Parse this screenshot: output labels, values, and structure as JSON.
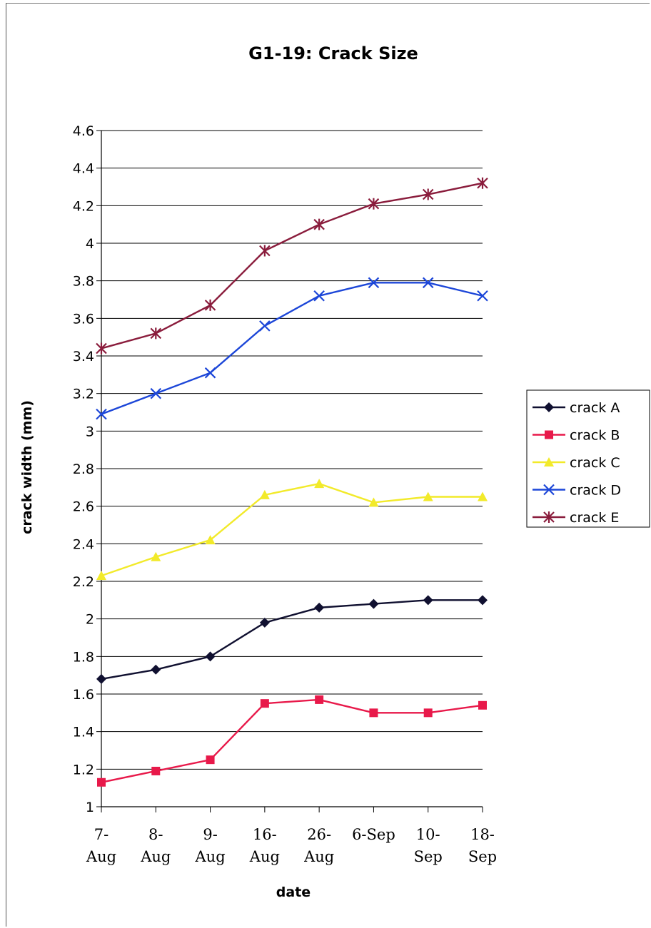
{
  "chart_data": {
    "type": "line",
    "title": "G1-19: Crack Size",
    "xlabel": "date",
    "ylabel": "crack width (mm)",
    "ylim": [
      1,
      4.6
    ],
    "yticks": [
      "1",
      "1.2",
      "1.4",
      "1.6",
      "1.8",
      "2",
      "2.2",
      "2.4",
      "2.6",
      "2.8",
      "3",
      "3.2",
      "3.4",
      "3.6",
      "3.8",
      "4",
      "4.2",
      "4.4",
      "4.6"
    ],
    "categories": [
      [
        "7-",
        "Aug"
      ],
      [
        "8-",
        "Aug"
      ],
      [
        "9-",
        "Aug"
      ],
      [
        "16-",
        "Aug"
      ],
      [
        "26-",
        "Aug"
      ],
      [
        "6-Sep"
      ],
      [
        "10-",
        "Sep"
      ],
      [
        "18-",
        "Sep"
      ]
    ],
    "grid": true,
    "legend_position": "right",
    "series": [
      {
        "name": "crack A",
        "color": "#101030",
        "marker": "diamond",
        "values": [
          1.68,
          1.73,
          1.8,
          1.98,
          2.06,
          2.08,
          2.1,
          2.1
        ]
      },
      {
        "name": "crack B",
        "color": "#e8194a",
        "marker": "square",
        "values": [
          1.13,
          1.19,
          1.25,
          1.55,
          1.57,
          1.5,
          1.5,
          1.54
        ]
      },
      {
        "name": "crack C",
        "color": "#f2ea2a",
        "marker": "triangle",
        "values": [
          2.23,
          2.33,
          2.42,
          2.66,
          2.72,
          2.62,
          2.65,
          2.65
        ]
      },
      {
        "name": "crack D",
        "color": "#1c46d8",
        "marker": "x",
        "values": [
          3.09,
          3.2,
          3.31,
          3.56,
          3.72,
          3.79,
          3.79,
          3.72
        ]
      },
      {
        "name": "crack E",
        "color": "#8a1c3c",
        "marker": "star",
        "values": [
          3.44,
          3.52,
          3.67,
          3.96,
          4.1,
          4.21,
          4.26,
          4.32
        ]
      }
    ]
  }
}
